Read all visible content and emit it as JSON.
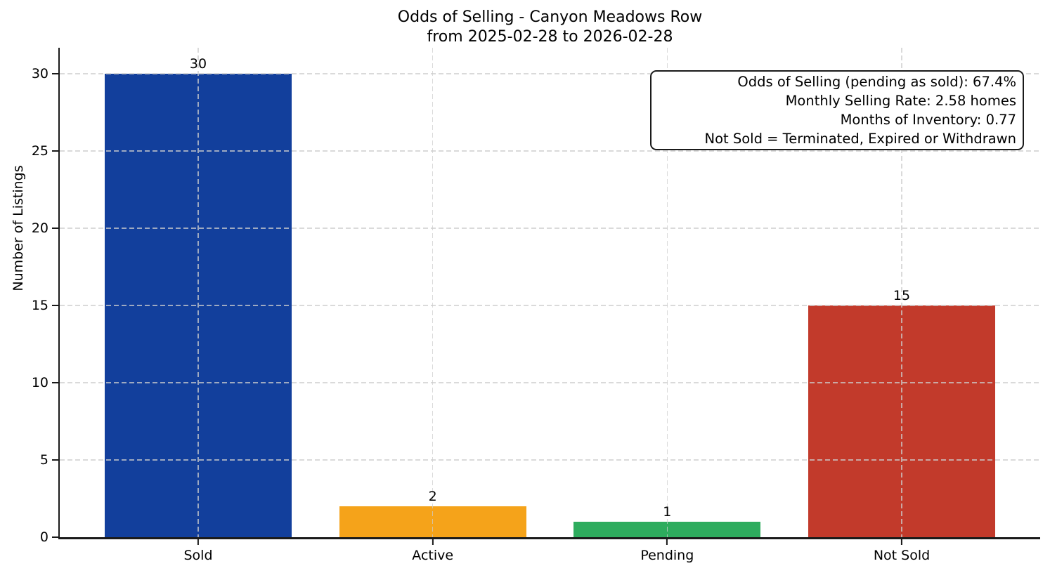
{
  "title": {
    "line1": "Odds of Selling - Canyon Meadows Row",
    "line2": "from 2025-02-28 to 2026-02-28"
  },
  "y_axis": {
    "label": "Number of Listings"
  },
  "stats_box": {
    "lines": [
      "Odds of Selling (pending as sold): 67.4%",
      "Monthly Selling Rate: 2.58 homes",
      "Months of Inventory: 0.77",
      "Not Sold = Terminated, Expired or Withdrawn"
    ]
  },
  "chart_data": {
    "type": "bar",
    "title": "Odds of Selling - Canyon Meadows Row\nfrom 2025-02-28 to 2026-02-28",
    "categories": [
      "Sold",
      "Active",
      "Pending",
      "Not Sold"
    ],
    "values": [
      30,
      2,
      1,
      15
    ],
    "bar_colors": [
      "#123f9c",
      "#f5a31a",
      "#2eac5e",
      "#c23a2b"
    ],
    "xlabel": "",
    "ylabel": "Number of Listings",
    "ylim": [
      0,
      31.7
    ],
    "yticks": [
      0,
      5,
      10,
      15,
      20,
      25,
      30
    ],
    "grid": true,
    "grid_style": "dashed",
    "legend_position": "none",
    "annotations": [
      "Odds of Selling (pending as sold): 67.4%",
      "Monthly Selling Rate: 2.58 homes",
      "Months of Inventory: 0.77",
      "Not Sold = Terminated, Expired or Withdrawn"
    ]
  }
}
